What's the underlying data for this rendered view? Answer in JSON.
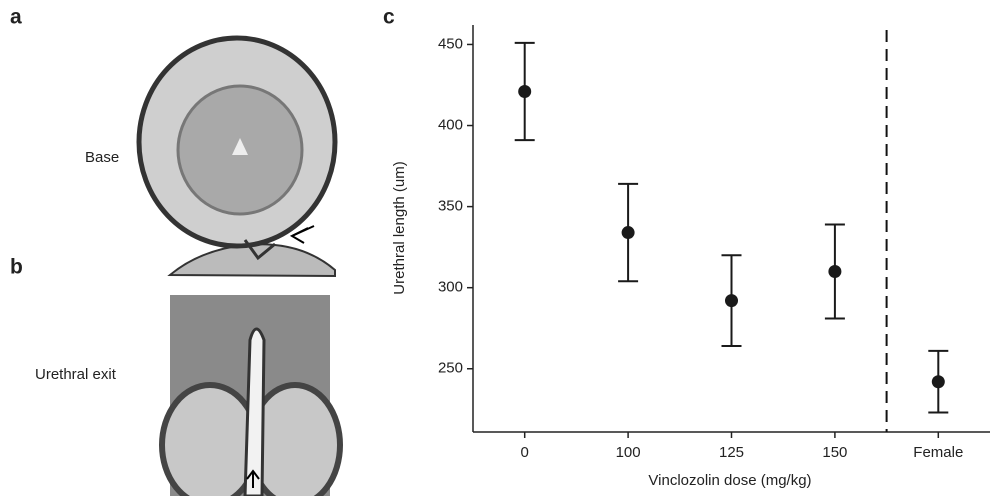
{
  "panel_labels": [
    "a",
    "b",
    "c"
  ],
  "image_labels": [
    "Base",
    "Urethral exit"
  ],
  "chart_data": {
    "type": "errorbar",
    "x_label": "Vinclozolin dose (mg/kg)",
    "y_label": "Urethral length (um)",
    "categories": [
      "0",
      "100",
      "125",
      "150",
      "Female"
    ],
    "values": [
      421,
      334,
      292,
      310,
      242
    ],
    "errors": [
      30,
      30,
      28,
      29,
      19
    ],
    "color": "#1a1a1a",
    "ylim": [
      211,
      462
    ],
    "yticks": [
      250,
      300,
      350,
      400,
      450
    ],
    "grid": false
  }
}
